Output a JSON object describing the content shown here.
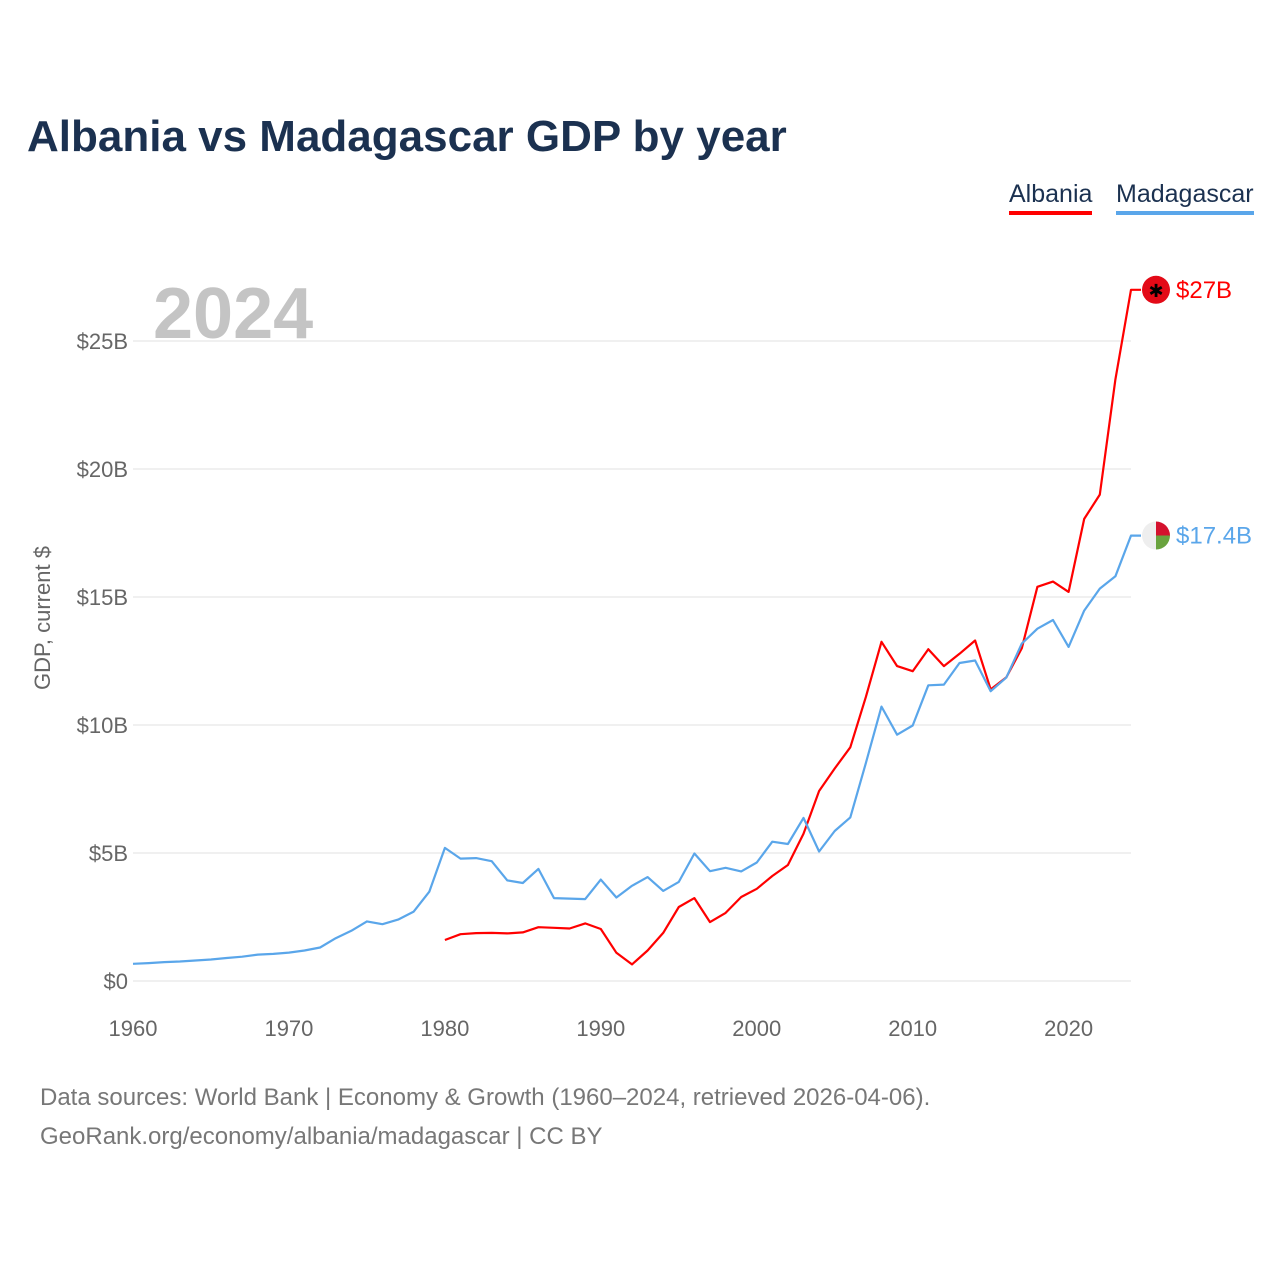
{
  "title": "Albania vs Madagascar GDP by year",
  "legend": [
    {
      "label": "Albania",
      "color": "#ff0000"
    },
    {
      "label": "Madagascar",
      "color": "#5aa6ea"
    }
  ],
  "footer": {
    "line1": "Data sources: World Bank | Economy & Growth (1960–2024, retrieved 2026-04-06).",
    "line2": "GeoRank.org/economy/albania/madagascar | CC BY"
  },
  "chart_data": {
    "type": "line",
    "title": "Albania vs Madagascar GDP by year",
    "year_label": "2024",
    "xlabel": "",
    "ylabel": "GDP, current $",
    "xlim": [
      1960,
      2024
    ],
    "ylim": [
      0,
      27
    ],
    "x_ticks": [
      1960,
      1970,
      1980,
      1990,
      2000,
      2010,
      2020
    ],
    "y_ticks": [
      {
        "v": 0,
        "label": "$0"
      },
      {
        "v": 5,
        "label": "$5B"
      },
      {
        "v": 10,
        "label": "$10B"
      },
      {
        "v": 15,
        "label": "$15B"
      },
      {
        "v": 20,
        "label": "$20B"
      },
      {
        "v": 25,
        "label": "$25B"
      }
    ],
    "grid": true,
    "legend_position": "top-right",
    "units": "billions USD",
    "series": [
      {
        "name": "Albania",
        "color": "#ff0000",
        "end_label": "$27B",
        "flag": "albania-flag",
        "start_year": 1980,
        "values": [
          1.6,
          1.83,
          1.87,
          1.88,
          1.86,
          1.9,
          2.1,
          2.08,
          2.05,
          2.25,
          2.03,
          1.1,
          0.65,
          1.19,
          1.88,
          2.89,
          3.24,
          2.3,
          2.66,
          3.28,
          3.6,
          4.1,
          4.53,
          5.75,
          7.42,
          8.3,
          9.13,
          11.1,
          13.25,
          12.3,
          12.1,
          12.96,
          12.3,
          12.78,
          13.3,
          11.39,
          11.86,
          13.0,
          15.4,
          15.6,
          15.2,
          18.05,
          19.0,
          23.5,
          27.0
        ]
      },
      {
        "name": "Madagascar",
        "color": "#5aa6ea",
        "end_label": "$17.4B",
        "flag": "madagascar-flag",
        "start_year": 1960,
        "values": [
          0.67,
          0.7,
          0.74,
          0.76,
          0.8,
          0.84,
          0.9,
          0.95,
          1.03,
          1.06,
          1.11,
          1.19,
          1.31,
          1.67,
          1.96,
          2.33,
          2.22,
          2.4,
          2.71,
          3.49,
          5.2,
          4.78,
          4.8,
          4.68,
          3.93,
          3.83,
          4.38,
          3.24,
          3.22,
          3.2,
          3.96,
          3.26,
          3.72,
          4.06,
          3.52,
          3.87,
          4.98,
          4.29,
          4.42,
          4.28,
          4.63,
          5.44,
          5.35,
          6.37,
          5.06,
          5.86,
          6.39,
          8.52,
          10.72,
          9.62,
          9.98,
          11.55,
          11.58,
          12.42,
          12.52,
          11.32,
          11.85,
          13.18,
          13.76,
          14.1,
          13.05,
          14.47,
          15.33,
          15.81,
          17.4
        ]
      }
    ]
  }
}
